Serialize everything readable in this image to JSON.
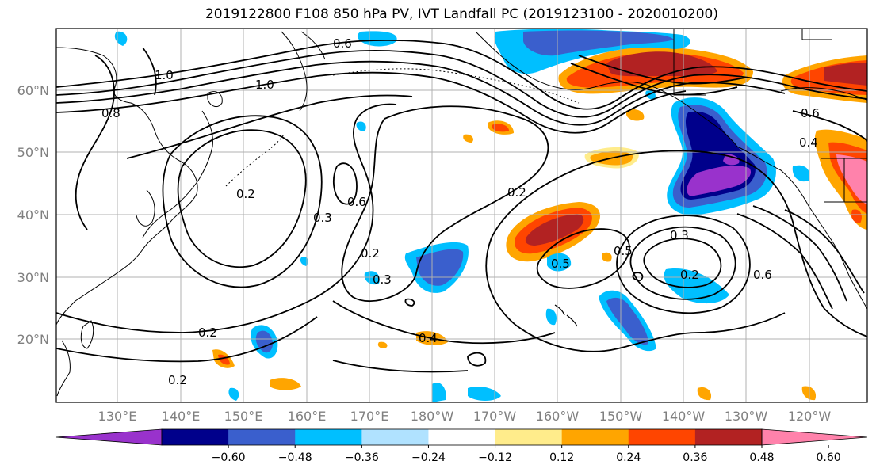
{
  "title": "2019122800 F108 850 hPa PV, IVT Landfall PC (2019123100 - 2020010200)",
  "lat_labels": [
    "60°N",
    "50°N",
    "40°N",
    "30°N",
    "20°N"
  ],
  "lon_labels": [
    "130°E",
    "140°E",
    "150°E",
    "160°E",
    "170°E",
    "180°W",
    "170°W",
    "160°W",
    "150°W",
    "140°W",
    "130°W",
    "120°W"
  ],
  "colorbar": {
    "ticks": [
      "−0.60",
      "−0.48",
      "−0.36",
      "−0.24",
      "−0.12",
      "0.12",
      "0.24",
      "0.36",
      "0.48",
      "0.60"
    ],
    "colors": [
      "#9932cc",
      "#00008b",
      "#3a5fcd",
      "#00bfff",
      "#b0e2ff",
      "#ffffff",
      "#ffec8b",
      "#ffa500",
      "#ff4500",
      "#b22222",
      "#ff82ab"
    ]
  },
  "contour_labels": [
    "0.2",
    "0.2",
    "0.2",
    "0.2",
    "0.2",
    "0.3",
    "0.3",
    "0.3",
    "0.4",
    "0.5",
    "0.5",
    "0.6",
    "0.6",
    "0.6",
    "0.8",
    "1.0",
    "1.0",
    "0.2",
    "0.6",
    "0.4"
  ]
}
